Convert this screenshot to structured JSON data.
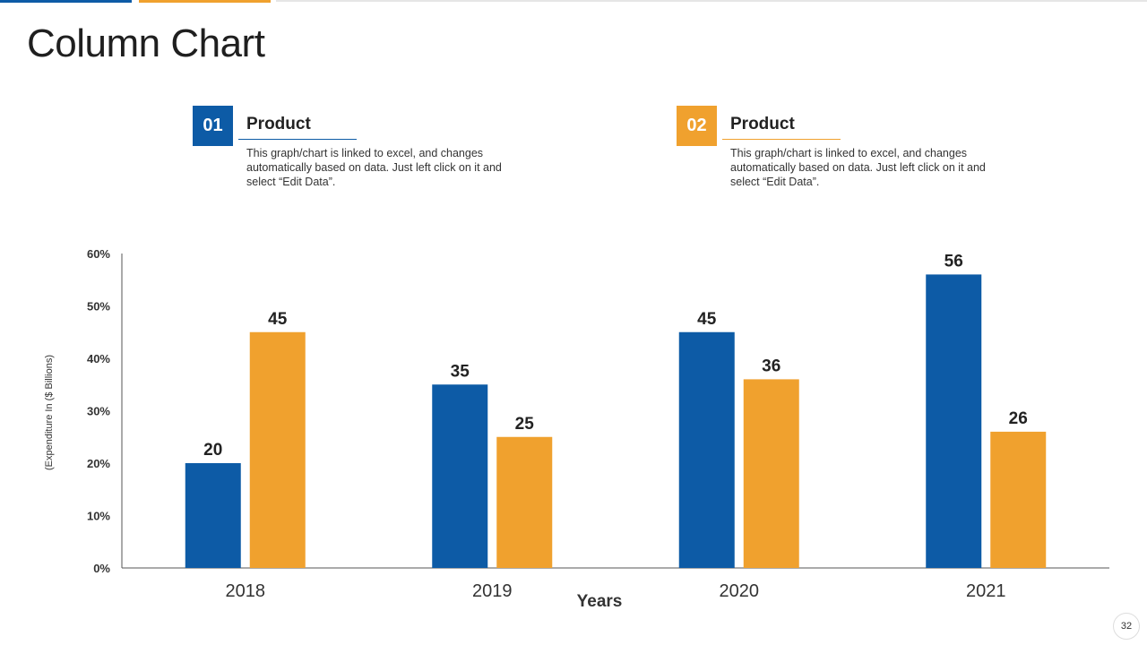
{
  "title": "Column Chart",
  "legend": [
    {
      "number": "01",
      "label": "Product",
      "description": "This graph/chart is linked to excel, and changes automatically based on data. Just left click on it and select “Edit Data”.",
      "color": "#0D5BA6"
    },
    {
      "number": "02",
      "label": "Product",
      "description": "This graph/chart is linked to excel, and changes automatically based on data. Just left click on it and select “Edit Data”.",
      "color": "#F0A12E"
    }
  ],
  "chart_data": {
    "type": "bar",
    "categories": [
      "2018",
      "2019",
      "2020",
      "2021"
    ],
    "series": [
      {
        "name": "Product 01",
        "values": [
          20,
          35,
          45,
          56
        ],
        "color": "#0D5BA6"
      },
      {
        "name": "Product 02",
        "values": [
          45,
          25,
          36,
          26
        ],
        "color": "#F0A12E"
      }
    ],
    "yticks": [
      "0%",
      "10%",
      "20%",
      "30%",
      "40%",
      "50%",
      "60%"
    ],
    "ylim": [
      0,
      60
    ],
    "xlabel": "Years",
    "ylabel": "(Expenditure In ($ Billions)",
    "grid": false
  },
  "page_number": "32"
}
